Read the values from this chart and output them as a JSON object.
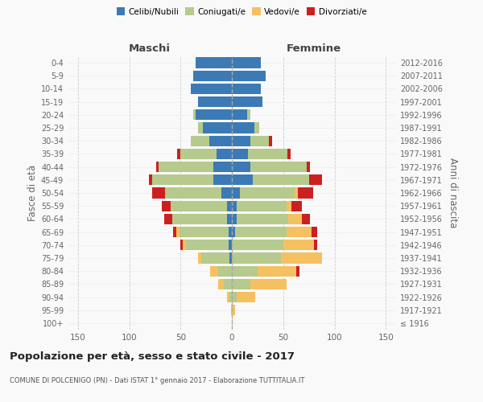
{
  "age_groups": [
    "100+",
    "95-99",
    "90-94",
    "85-89",
    "80-84",
    "75-79",
    "70-74",
    "65-69",
    "60-64",
    "55-59",
    "50-54",
    "45-49",
    "40-44",
    "35-39",
    "30-34",
    "25-29",
    "20-24",
    "15-19",
    "10-14",
    "5-9",
    "0-4"
  ],
  "birth_years": [
    "≤ 1916",
    "1917-1921",
    "1922-1926",
    "1927-1931",
    "1932-1936",
    "1937-1941",
    "1942-1946",
    "1947-1951",
    "1952-1956",
    "1957-1961",
    "1962-1966",
    "1967-1971",
    "1972-1976",
    "1977-1981",
    "1982-1986",
    "1987-1991",
    "1992-1996",
    "1997-2001",
    "2002-2006",
    "2007-2011",
    "2012-2016"
  ],
  "maschi": {
    "celibi": [
      0,
      0,
      0,
      0,
      0,
      2,
      3,
      3,
      5,
      5,
      10,
      18,
      18,
      15,
      22,
      28,
      35,
      33,
      40,
      38,
      35
    ],
    "coniugati": [
      0,
      0,
      2,
      8,
      13,
      28,
      42,
      48,
      53,
      55,
      55,
      60,
      53,
      35,
      18,
      5,
      3,
      0,
      0,
      0,
      0
    ],
    "vedovi": [
      0,
      1,
      3,
      5,
      8,
      3,
      3,
      3,
      0,
      0,
      0,
      0,
      0,
      0,
      0,
      0,
      0,
      0,
      0,
      0,
      0
    ],
    "divorziati": [
      0,
      0,
      0,
      0,
      0,
      0,
      2,
      3,
      8,
      8,
      13,
      3,
      3,
      3,
      0,
      0,
      0,
      0,
      0,
      0,
      0
    ]
  },
  "femmine": {
    "nubili": [
      0,
      0,
      0,
      0,
      0,
      0,
      0,
      3,
      5,
      5,
      8,
      20,
      18,
      16,
      18,
      22,
      15,
      30,
      28,
      33,
      28
    ],
    "coniugate": [
      0,
      0,
      5,
      18,
      25,
      48,
      50,
      50,
      50,
      48,
      53,
      55,
      55,
      38,
      18,
      5,
      3,
      0,
      0,
      0,
      0
    ],
    "vedove": [
      1,
      3,
      18,
      35,
      38,
      40,
      30,
      25,
      13,
      5,
      3,
      0,
      0,
      0,
      0,
      0,
      0,
      0,
      0,
      0,
      0
    ],
    "divorziate": [
      0,
      0,
      0,
      0,
      3,
      0,
      3,
      5,
      8,
      10,
      15,
      13,
      3,
      3,
      3,
      0,
      0,
      0,
      0,
      0,
      0
    ]
  },
  "colors": {
    "celibi_nubili": "#3c7ab5",
    "coniugati": "#b5ca8c",
    "vedovi": "#f5c060",
    "divorziati": "#cc2020"
  },
  "title": "Popolazione per età, sesso e stato civile - 2017",
  "subtitle": "COMUNE DI POLCENIGO (PN) - Dati ISTAT 1° gennaio 2017 - Elaborazione TUTTITALIA.IT",
  "xlabel_left": "Maschi",
  "xlabel_right": "Femmine",
  "ylabel_left": "Fasce di età",
  "ylabel_right": "Anni di nascita",
  "xlim": 160,
  "bg_color": "#f9f9f9",
  "legend_labels": [
    "Celibi/Nubili",
    "Coniugati/e",
    "Vedovi/e",
    "Divorziati/e"
  ]
}
